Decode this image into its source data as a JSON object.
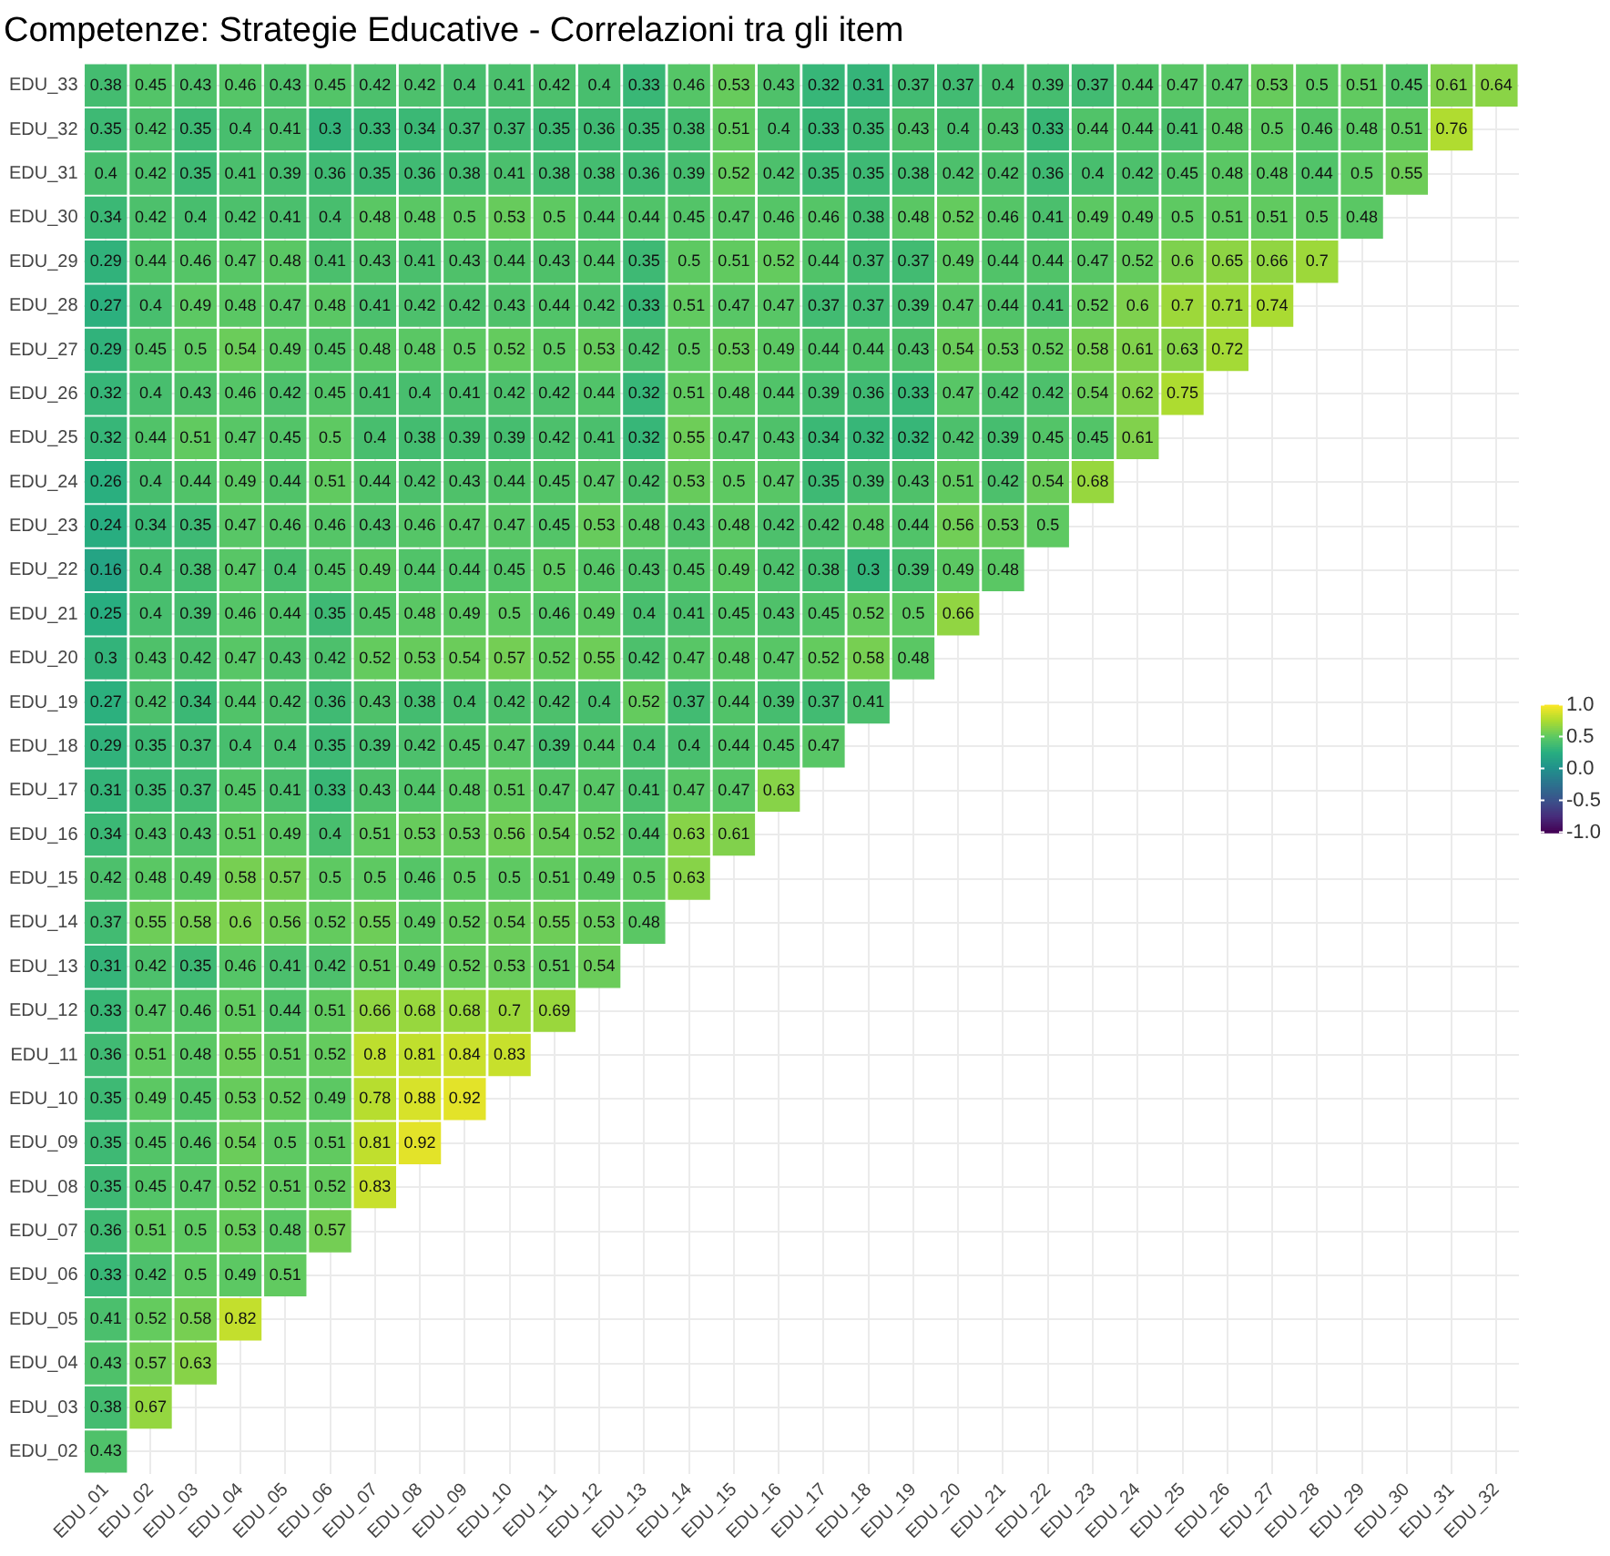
{
  "chart_data": {
    "type": "heatmap",
    "title": "Competenze: Strategie Educative - Correlazioni tra gli item",
    "categories": [
      "EDU_01",
      "EDU_02",
      "EDU_03",
      "EDU_04",
      "EDU_05",
      "EDU_06",
      "EDU_07",
      "EDU_08",
      "EDU_09",
      "EDU_10",
      "EDU_11",
      "EDU_12",
      "EDU_13",
      "EDU_14",
      "EDU_15",
      "EDU_16",
      "EDU_17",
      "EDU_18",
      "EDU_19",
      "EDU_20",
      "EDU_21",
      "EDU_22",
      "EDU_23",
      "EDU_24",
      "EDU_25",
      "EDU_26",
      "EDU_27",
      "EDU_28",
      "EDU_29",
      "EDU_30",
      "EDU_31",
      "EDU_32"
    ],
    "y_categories": [
      "EDU_33",
      "EDU_32",
      "EDU_31",
      "EDU_30",
      "EDU_29",
      "EDU_28",
      "EDU_27",
      "EDU_26",
      "EDU_25",
      "EDU_24",
      "EDU_23",
      "EDU_22",
      "EDU_21",
      "EDU_20",
      "EDU_19",
      "EDU_18",
      "EDU_17",
      "EDU_16",
      "EDU_15",
      "EDU_14",
      "EDU_13",
      "EDU_12",
      "EDU_11",
      "EDU_10",
      "EDU_09",
      "EDU_08",
      "EDU_07",
      "EDU_06",
      "EDU_05",
      "EDU_04",
      "EDU_03",
      "EDU_02"
    ],
    "cells": [
      [
        0.38,
        0.45,
        0.43,
        0.46,
        0.43,
        0.45,
        0.42,
        0.42,
        0.4,
        0.41,
        0.42,
        0.4,
        0.33,
        0.46,
        0.53,
        0.43,
        0.32,
        0.31,
        0.37,
        0.37,
        0.4,
        0.39,
        0.37,
        0.44,
        0.47,
        0.47,
        0.53,
        0.5,
        0.51,
        0.45,
        0.61,
        0.64
      ],
      [
        0.35,
        0.42,
        0.35,
        0.4,
        0.41,
        0.3,
        0.33,
        0.34,
        0.37,
        0.37,
        0.35,
        0.36,
        0.35,
        0.38,
        0.51,
        0.4,
        0.33,
        0.35,
        0.43,
        0.4,
        0.43,
        0.33,
        0.44,
        0.44,
        0.41,
        0.48,
        0.5,
        0.46,
        0.48,
        0.51,
        0.76,
        null
      ],
      [
        0.4,
        0.42,
        0.35,
        0.41,
        0.39,
        0.36,
        0.35,
        0.36,
        0.38,
        0.41,
        0.38,
        0.38,
        0.36,
        0.39,
        0.52,
        0.42,
        0.35,
        0.35,
        0.38,
        0.42,
        0.42,
        0.36,
        0.4,
        0.42,
        0.45,
        0.48,
        0.48,
        0.44,
        0.5,
        0.55,
        null,
        null
      ],
      [
        0.34,
        0.42,
        0.4,
        0.42,
        0.41,
        0.4,
        0.48,
        0.48,
        0.5,
        0.53,
        0.5,
        0.44,
        0.44,
        0.45,
        0.47,
        0.46,
        0.46,
        0.38,
        0.48,
        0.52,
        0.46,
        0.41,
        0.49,
        0.49,
        0.5,
        0.51,
        0.51,
        0.5,
        0.48,
        null,
        null,
        null
      ],
      [
        0.29,
        0.44,
        0.46,
        0.47,
        0.48,
        0.41,
        0.43,
        0.41,
        0.43,
        0.44,
        0.43,
        0.44,
        0.35,
        0.5,
        0.51,
        0.52,
        0.44,
        0.37,
        0.37,
        0.49,
        0.44,
        0.44,
        0.47,
        0.52,
        0.6,
        0.65,
        0.66,
        0.7,
        null,
        null,
        null,
        null
      ],
      [
        0.27,
        0.4,
        0.49,
        0.48,
        0.47,
        0.48,
        0.41,
        0.42,
        0.42,
        0.43,
        0.44,
        0.42,
        0.33,
        0.51,
        0.47,
        0.47,
        0.37,
        0.37,
        0.39,
        0.47,
        0.44,
        0.41,
        0.52,
        0.6,
        0.7,
        0.71,
        0.74,
        null,
        null,
        null,
        null,
        null
      ],
      [
        0.29,
        0.45,
        0.5,
        0.54,
        0.49,
        0.45,
        0.48,
        0.48,
        0.5,
        0.52,
        0.5,
        0.53,
        0.42,
        0.5,
        0.53,
        0.49,
        0.44,
        0.44,
        0.43,
        0.54,
        0.53,
        0.52,
        0.58,
        0.61,
        0.63,
        0.72,
        null,
        null,
        null,
        null,
        null,
        null
      ],
      [
        0.32,
        0.4,
        0.43,
        0.46,
        0.42,
        0.45,
        0.41,
        0.4,
        0.41,
        0.42,
        0.42,
        0.44,
        0.32,
        0.51,
        0.48,
        0.44,
        0.39,
        0.36,
        0.33,
        0.47,
        0.42,
        0.42,
        0.54,
        0.62,
        0.75,
        null,
        null,
        null,
        null,
        null,
        null,
        null
      ],
      [
        0.32,
        0.44,
        0.51,
        0.47,
        0.45,
        0.5,
        0.4,
        0.38,
        0.39,
        0.39,
        0.42,
        0.41,
        0.32,
        0.55,
        0.47,
        0.43,
        0.34,
        0.32,
        0.32,
        0.42,
        0.39,
        0.45,
        0.45,
        0.61,
        null,
        null,
        null,
        null,
        null,
        null,
        null,
        null
      ],
      [
        0.26,
        0.4,
        0.44,
        0.49,
        0.44,
        0.51,
        0.44,
        0.42,
        0.43,
        0.44,
        0.45,
        0.47,
        0.42,
        0.53,
        0.5,
        0.47,
        0.35,
        0.39,
        0.43,
        0.51,
        0.42,
        0.54,
        0.68,
        null,
        null,
        null,
        null,
        null,
        null,
        null,
        null,
        null
      ],
      [
        0.24,
        0.34,
        0.35,
        0.47,
        0.46,
        0.46,
        0.43,
        0.46,
        0.47,
        0.47,
        0.45,
        0.53,
        0.48,
        0.43,
        0.48,
        0.42,
        0.42,
        0.48,
        0.44,
        0.56,
        0.53,
        0.5,
        null,
        null,
        null,
        null,
        null,
        null,
        null,
        null,
        null,
        null
      ],
      [
        0.16,
        0.4,
        0.38,
        0.47,
        0.4,
        0.45,
        0.49,
        0.44,
        0.44,
        0.45,
        0.5,
        0.46,
        0.43,
        0.45,
        0.49,
        0.42,
        0.38,
        0.3,
        0.39,
        0.49,
        0.48,
        null,
        null,
        null,
        null,
        null,
        null,
        null,
        null,
        null,
        null,
        null
      ],
      [
        0.25,
        0.4,
        0.39,
        0.46,
        0.44,
        0.35,
        0.45,
        0.48,
        0.49,
        0.5,
        0.46,
        0.49,
        0.4,
        0.41,
        0.45,
        0.43,
        0.45,
        0.52,
        0.5,
        0.66,
        null,
        null,
        null,
        null,
        null,
        null,
        null,
        null,
        null,
        null,
        null,
        null
      ],
      [
        0.3,
        0.43,
        0.42,
        0.47,
        0.43,
        0.42,
        0.52,
        0.53,
        0.54,
        0.57,
        0.52,
        0.55,
        0.42,
        0.47,
        0.48,
        0.47,
        0.52,
        0.58,
        0.48,
        null,
        null,
        null,
        null,
        null,
        null,
        null,
        null,
        null,
        null,
        null,
        null,
        null
      ],
      [
        0.27,
        0.42,
        0.34,
        0.44,
        0.42,
        0.36,
        0.43,
        0.38,
        0.4,
        0.42,
        0.42,
        0.4,
        0.52,
        0.37,
        0.44,
        0.39,
        0.37,
        0.41,
        null,
        null,
        null,
        null,
        null,
        null,
        null,
        null,
        null,
        null,
        null,
        null,
        null,
        null
      ],
      [
        0.29,
        0.35,
        0.37,
        0.4,
        0.4,
        0.35,
        0.39,
        0.42,
        0.45,
        0.47,
        0.39,
        0.44,
        0.4,
        0.4,
        0.44,
        0.45,
        0.47,
        null,
        null,
        null,
        null,
        null,
        null,
        null,
        null,
        null,
        null,
        null,
        null,
        null,
        null,
        null
      ],
      [
        0.31,
        0.35,
        0.37,
        0.45,
        0.41,
        0.33,
        0.43,
        0.44,
        0.48,
        0.51,
        0.47,
        0.47,
        0.41,
        0.47,
        0.47,
        0.63,
        null,
        null,
        null,
        null,
        null,
        null,
        null,
        null,
        null,
        null,
        null,
        null,
        null,
        null,
        null,
        null
      ],
      [
        0.34,
        0.43,
        0.43,
        0.51,
        0.49,
        0.4,
        0.51,
        0.53,
        0.53,
        0.56,
        0.54,
        0.52,
        0.44,
        0.63,
        0.61,
        null,
        null,
        null,
        null,
        null,
        null,
        null,
        null,
        null,
        null,
        null,
        null,
        null,
        null,
        null,
        null,
        null
      ],
      [
        0.42,
        0.48,
        0.49,
        0.58,
        0.57,
        0.5,
        0.5,
        0.46,
        0.5,
        0.5,
        0.51,
        0.49,
        0.5,
        0.63,
        null,
        null,
        null,
        null,
        null,
        null,
        null,
        null,
        null,
        null,
        null,
        null,
        null,
        null,
        null,
        null,
        null,
        null
      ],
      [
        0.37,
        0.55,
        0.58,
        0.6,
        0.56,
        0.52,
        0.55,
        0.49,
        0.52,
        0.54,
        0.55,
        0.53,
        0.48,
        null,
        null,
        null,
        null,
        null,
        null,
        null,
        null,
        null,
        null,
        null,
        null,
        null,
        null,
        null,
        null,
        null,
        null,
        null
      ],
      [
        0.31,
        0.42,
        0.35,
        0.46,
        0.41,
        0.42,
        0.51,
        0.49,
        0.52,
        0.53,
        0.51,
        0.54,
        null,
        null,
        null,
        null,
        null,
        null,
        null,
        null,
        null,
        null,
        null,
        null,
        null,
        null,
        null,
        null,
        null,
        null,
        null,
        null
      ],
      [
        0.33,
        0.47,
        0.46,
        0.51,
        0.44,
        0.51,
        0.66,
        0.68,
        0.68,
        0.7,
        0.69,
        null,
        null,
        null,
        null,
        null,
        null,
        null,
        null,
        null,
        null,
        null,
        null,
        null,
        null,
        null,
        null,
        null,
        null,
        null,
        null,
        null
      ],
      [
        0.36,
        0.51,
        0.48,
        0.55,
        0.51,
        0.52,
        0.8,
        0.81,
        0.84,
        0.83,
        null,
        null,
        null,
        null,
        null,
        null,
        null,
        null,
        null,
        null,
        null,
        null,
        null,
        null,
        null,
        null,
        null,
        null,
        null,
        null,
        null,
        null
      ],
      [
        0.35,
        0.49,
        0.45,
        0.53,
        0.52,
        0.49,
        0.78,
        0.88,
        0.92,
        null,
        null,
        null,
        null,
        null,
        null,
        null,
        null,
        null,
        null,
        null,
        null,
        null,
        null,
        null,
        null,
        null,
        null,
        null,
        null,
        null,
        null,
        null
      ],
      [
        0.35,
        0.45,
        0.46,
        0.54,
        0.5,
        0.51,
        0.81,
        0.92,
        null,
        null,
        null,
        null,
        null,
        null,
        null,
        null,
        null,
        null,
        null,
        null,
        null,
        null,
        null,
        null,
        null,
        null,
        null,
        null,
        null,
        null,
        null,
        null
      ],
      [
        0.35,
        0.45,
        0.47,
        0.52,
        0.51,
        0.52,
        0.83,
        null,
        null,
        null,
        null,
        null,
        null,
        null,
        null,
        null,
        null,
        null,
        null,
        null,
        null,
        null,
        null,
        null,
        null,
        null,
        null,
        null,
        null,
        null,
        null,
        null
      ],
      [
        0.36,
        0.51,
        0.5,
        0.53,
        0.48,
        0.57,
        null,
        null,
        null,
        null,
        null,
        null,
        null,
        null,
        null,
        null,
        null,
        null,
        null,
        null,
        null,
        null,
        null,
        null,
        null,
        null,
        null,
        null,
        null,
        null,
        null,
        null
      ],
      [
        0.33,
        0.42,
        0.5,
        0.49,
        0.51,
        null,
        null,
        null,
        null,
        null,
        null,
        null,
        null,
        null,
        null,
        null,
        null,
        null,
        null,
        null,
        null,
        null,
        null,
        null,
        null,
        null,
        null,
        null,
        null,
        null,
        null,
        null
      ],
      [
        0.41,
        0.52,
        0.58,
        0.82,
        null,
        null,
        null,
        null,
        null,
        null,
        null,
        null,
        null,
        null,
        null,
        null,
        null,
        null,
        null,
        null,
        null,
        null,
        null,
        null,
        null,
        null,
        null,
        null,
        null,
        null,
        null,
        null
      ],
      [
        0.43,
        0.57,
        0.63,
        null,
        null,
        null,
        null,
        null,
        null,
        null,
        null,
        null,
        null,
        null,
        null,
        null,
        null,
        null,
        null,
        null,
        null,
        null,
        null,
        null,
        null,
        null,
        null,
        null,
        null,
        null,
        null,
        null
      ],
      [
        0.38,
        0.67,
        null,
        null,
        null,
        null,
        null,
        null,
        null,
        null,
        null,
        null,
        null,
        null,
        null,
        null,
        null,
        null,
        null,
        null,
        null,
        null,
        null,
        null,
        null,
        null,
        null,
        null,
        null,
        null,
        null,
        null
      ],
      [
        0.43,
        null,
        null,
        null,
        null,
        null,
        null,
        null,
        null,
        null,
        null,
        null,
        null,
        null,
        null,
        null,
        null,
        null,
        null,
        null,
        null,
        null,
        null,
        null,
        null,
        null,
        null,
        null,
        null,
        null,
        null,
        null
      ]
    ],
    "clim": [
      -1,
      1
    ],
    "cticks": [
      {
        "value": 1,
        "label": "1.0"
      },
      {
        "value": 0.5,
        "label": "0.5"
      },
      {
        "value": 0,
        "label": "0.0"
      },
      {
        "value": -0.5,
        "label": "-0.5"
      },
      {
        "value": -1,
        "label": "-1.0"
      }
    ],
    "data_labels": true,
    "grid": true
  }
}
